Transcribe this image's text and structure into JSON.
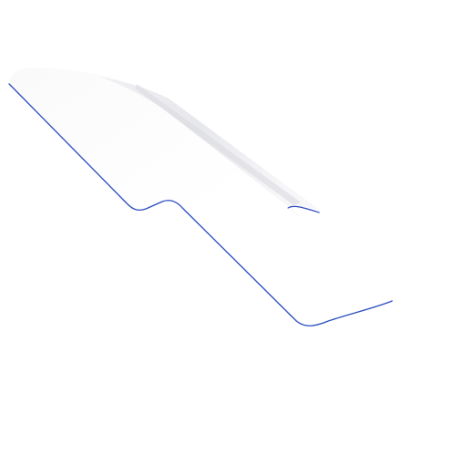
{
  "canvas": {
    "background": "#ffffff"
  },
  "shape": {
    "name": "white-3d-bent-strip",
    "fill_top": "#ffffff",
    "fill_shade": "#e9e9ef",
    "fold_shade": "#dcdde3",
    "edge_color": "#2a4cc0"
  }
}
